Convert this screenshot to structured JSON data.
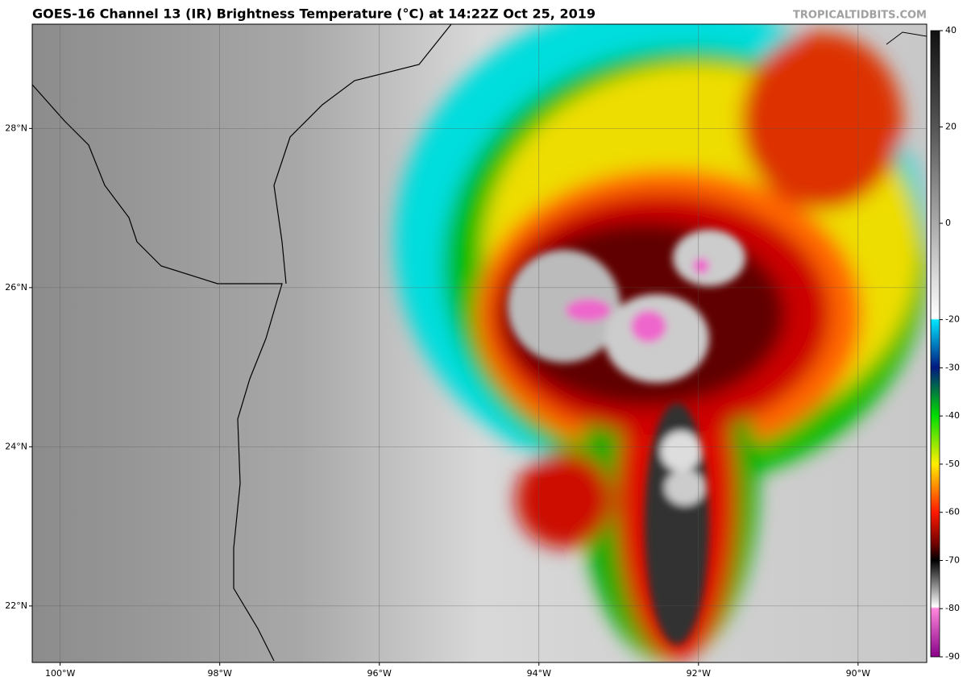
{
  "map": {
    "title": "GOES-16 Channel 13 (IR) Brightness Temperature (°C) at 14:22Z Oct 25, 2019",
    "credit": "TROPICALTIDBITS.COM",
    "lon_lim": [
      -100.35,
      -89.14
    ],
    "lat_lim": [
      21.29,
      29.31
    ],
    "lon_ticks": [
      {
        "value": -100,
        "label": "100°W"
      },
      {
        "value": -98,
        "label": "98°W"
      },
      {
        "value": -96,
        "label": "96°W"
      },
      {
        "value": -94,
        "label": "94°W"
      },
      {
        "value": -92,
        "label": "92°W"
      },
      {
        "value": -90,
        "label": "90°W"
      }
    ],
    "lat_ticks": [
      {
        "value": 28,
        "label": "28°N"
      },
      {
        "value": 26,
        "label": "26°N"
      },
      {
        "value": 24,
        "label": "24°N"
      },
      {
        "value": 22,
        "label": "22°N"
      }
    ],
    "colorbar": {
      "lim": [
        -90,
        40
      ],
      "ticks": [
        40,
        20,
        0,
        -20,
        -30,
        -40,
        -50,
        -60,
        -70,
        -80,
        -90
      ]
    }
  }
}
